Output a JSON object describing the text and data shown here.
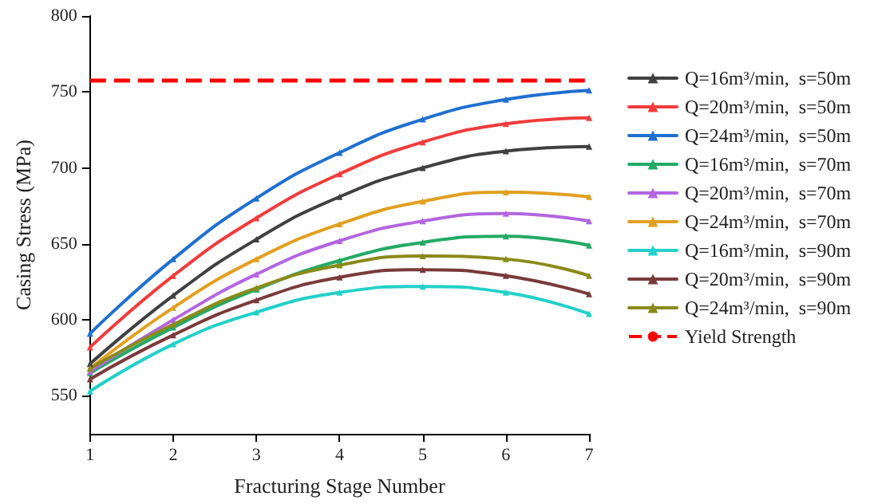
{
  "chart_data": {
    "type": "line",
    "xlabel": "Fracturing Stage Number",
    "ylabel": "Casing Stress (MPa)",
    "x": [
      1,
      2,
      3,
      4,
      5,
      6,
      7
    ],
    "xlim": [
      1,
      7
    ],
    "xticks": [
      1,
      2,
      3,
      4,
      5,
      6,
      7
    ],
    "ylim": [
      525,
      800
    ],
    "yticks": [
      550,
      600,
      650,
      700,
      750,
      800
    ],
    "series": [
      {
        "name": "Q=16m³/min,  s=50m",
        "color": "#404040",
        "values": [
          571,
          616,
          653,
          681,
          700,
          711,
          714
        ]
      },
      {
        "name": "Q=20m³/min,  s=50m",
        "color": "#f03c3c",
        "values": [
          582,
          629,
          667,
          696,
          717,
          729,
          733
        ]
      },
      {
        "name": "Q=24m³/min,  s=50m",
        "color": "#1f6fd0",
        "values": [
          591,
          640,
          680,
          710,
          732,
          745,
          751
        ]
      },
      {
        "name": "Q=16m³/min,  s=70m",
        "color": "#22aa66",
        "values": [
          565,
          595,
          620,
          639,
          651,
          655,
          649
        ]
      },
      {
        "name": "Q=20m³/min,  s=70m",
        "color": "#b366e0",
        "values": [
          566,
          600,
          630,
          652,
          665,
          670,
          665
        ]
      },
      {
        "name": "Q=24m³/min,  s=70m",
        "color": "#e0a020",
        "values": [
          568,
          608,
          640,
          663,
          678,
          684,
          681
        ]
      },
      {
        "name": "Q=16m³/min,  s=90m",
        "color": "#22d0c8",
        "values": [
          553,
          584,
          605,
          618,
          622,
          618,
          604
        ]
      },
      {
        "name": "Q=20m³/min,  s=90m",
        "color": "#7a3a3a",
        "values": [
          561,
          590,
          613,
          628,
          633,
          629,
          617
        ]
      },
      {
        "name": "Q=24m³/min,  s=90m",
        "color": "#8a8a1a",
        "values": [
          568,
          597,
          621,
          636,
          642,
          640,
          629
        ]
      }
    ],
    "ref_lines": [
      {
        "axis": "y",
        "value": 758,
        "label": "Yield Strength",
        "color": "#ff0000",
        "line_style": "dashed"
      }
    ],
    "legend": "right",
    "marker": "triangle",
    "line_style": "solid",
    "grid": false
  }
}
